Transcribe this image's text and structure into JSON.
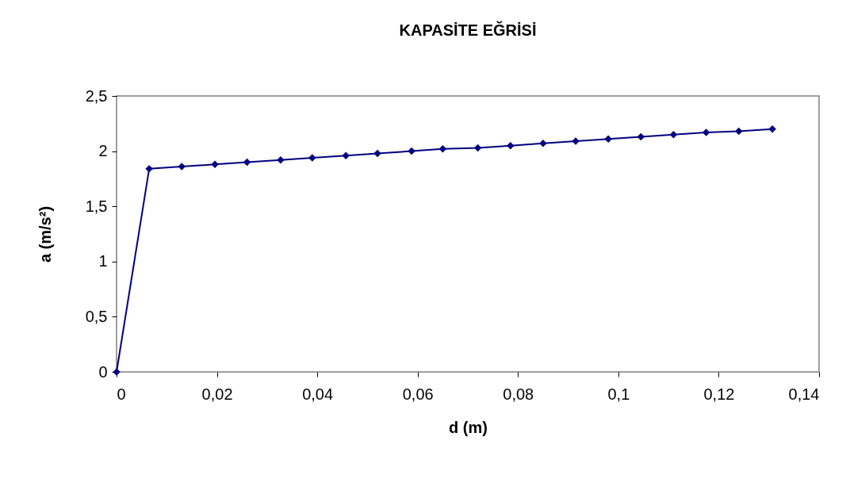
{
  "chart_data": {
    "type": "line",
    "title": "KAPASİTE EĞRİSİ",
    "xlabel": "d (m)",
    "ylabel": "a (m/s²)",
    "x": [
      0,
      0.0065,
      0.013,
      0.0196,
      0.026,
      0.0327,
      0.039,
      0.0457,
      0.052,
      0.0588,
      0.065,
      0.072,
      0.0785,
      0.085,
      0.0915,
      0.098,
      0.1045,
      0.111,
      0.1175,
      0.124,
      0.1307
    ],
    "series": [
      {
        "color": "#000080",
        "values": [
          0,
          1.84,
          1.86,
          1.88,
          1.9,
          1.92,
          1.94,
          1.96,
          1.98,
          2.0,
          2.02,
          2.03,
          2.05,
          2.07,
          2.09,
          2.11,
          2.13,
          2.15,
          2.17,
          2.18,
          2.2
        ]
      }
    ],
    "xlim": [
      0,
      0.14
    ],
    "xticks": [
      0,
      {
        "value": 0.02,
        "label": "0,02"
      },
      {
        "value": 0.04,
        "label": "0,04"
      },
      {
        "value": 0.06,
        "label": "0,06"
      },
      {
        "value": 0.08,
        "label": "0,08"
      },
      {
        "value": 0.1,
        "label": "0,1"
      },
      {
        "value": 0.12,
        "label": "0,12"
      },
      {
        "value": 0.14,
        "label": "0,14"
      }
    ],
    "ylim": [
      0,
      2.5
    ],
    "yticks": [
      0,
      {
        "value": 0.5,
        "label": "0,5"
      },
      1,
      {
        "value": 1.5,
        "label": "1,5"
      },
      2,
      {
        "value": 2.5,
        "label": "2,5"
      }
    ],
    "marker": "diamond",
    "line_style": "solid",
    "grid": false
  }
}
